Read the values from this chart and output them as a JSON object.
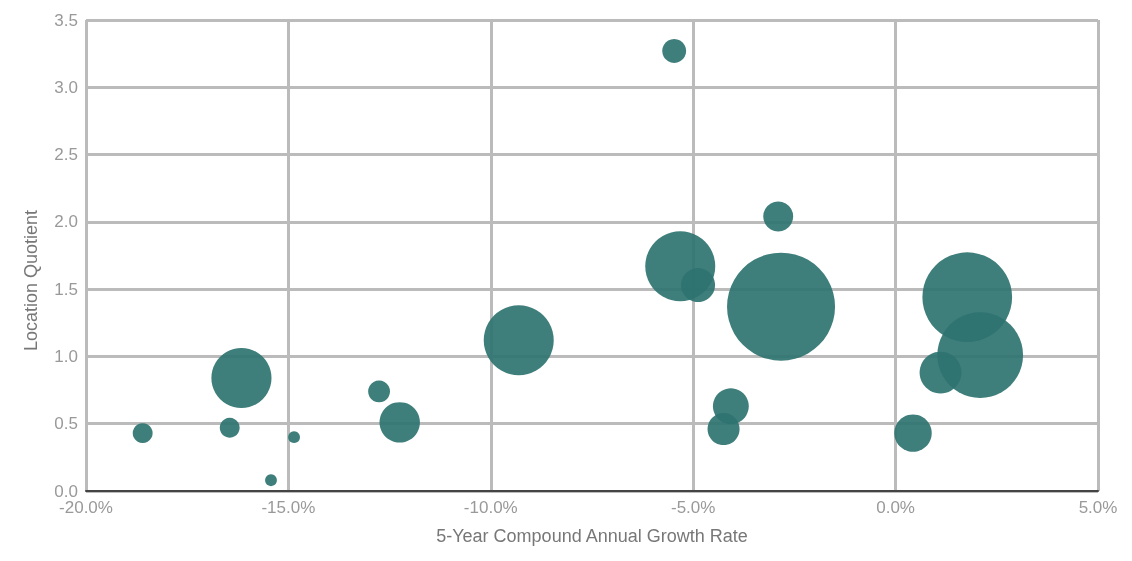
{
  "chart_data": {
    "type": "bubble",
    "xlabel": "5-Year Compound Annual Growth Rate",
    "ylabel": "Location Quotient",
    "xlim": [
      -20,
      5
    ],
    "xticks": [
      {
        "value": -20,
        "label": "-20.0%"
      },
      {
        "value": -15,
        "label": "-15.0%"
      },
      {
        "value": -10,
        "label": "-10.0%"
      },
      {
        "value": -5,
        "label": "-5.0%"
      },
      {
        "value": 0,
        "label": "0.0%"
      },
      {
        "value": 5,
        "label": "5.0%"
      }
    ],
    "ylim": [
      0,
      3.5
    ],
    "yticks": [
      {
        "value": 0,
        "label": "0.0"
      },
      {
        "value": 0.5,
        "label": "0.5"
      },
      {
        "value": 1,
        "label": "1.0"
      },
      {
        "value": 1.5,
        "label": "1.5"
      },
      {
        "value": 2,
        "label": "2.0"
      },
      {
        "value": 2.5,
        "label": "2.5"
      },
      {
        "value": 3,
        "label": "3.0"
      },
      {
        "value": 3.5,
        "label": "3.5"
      }
    ],
    "grid": true,
    "series": [
      {
        "color": "#2e7370",
        "x": [
          -18.6,
          -16.45,
          -16.16,
          -15.43,
          -14.86,
          -12.76,
          -12.25,
          -9.31,
          -5.47,
          -5.32,
          -4.88,
          -4.07,
          -4.25,
          -2.9,
          -2.83,
          0.43,
          1.11,
          1.77,
          2.09
        ],
        "values": [
          0.43,
          0.47,
          0.84,
          0.08,
          0.4,
          0.74,
          0.51,
          1.12,
          3.27,
          1.67,
          1.53,
          0.63,
          0.46,
          2.04,
          1.37,
          0.43,
          0.88,
          1.44,
          1.01
        ],
        "sizes": [
          0.034,
          0.034,
          0.31,
          0.012,
          0.012,
          0.041,
          0.14,
          0.42,
          0.049,
          0.42,
          0.099,
          0.11,
          0.088,
          0.077,
          1,
          0.12,
          0.15,
          0.69,
          0.63
        ]
      }
    ]
  }
}
